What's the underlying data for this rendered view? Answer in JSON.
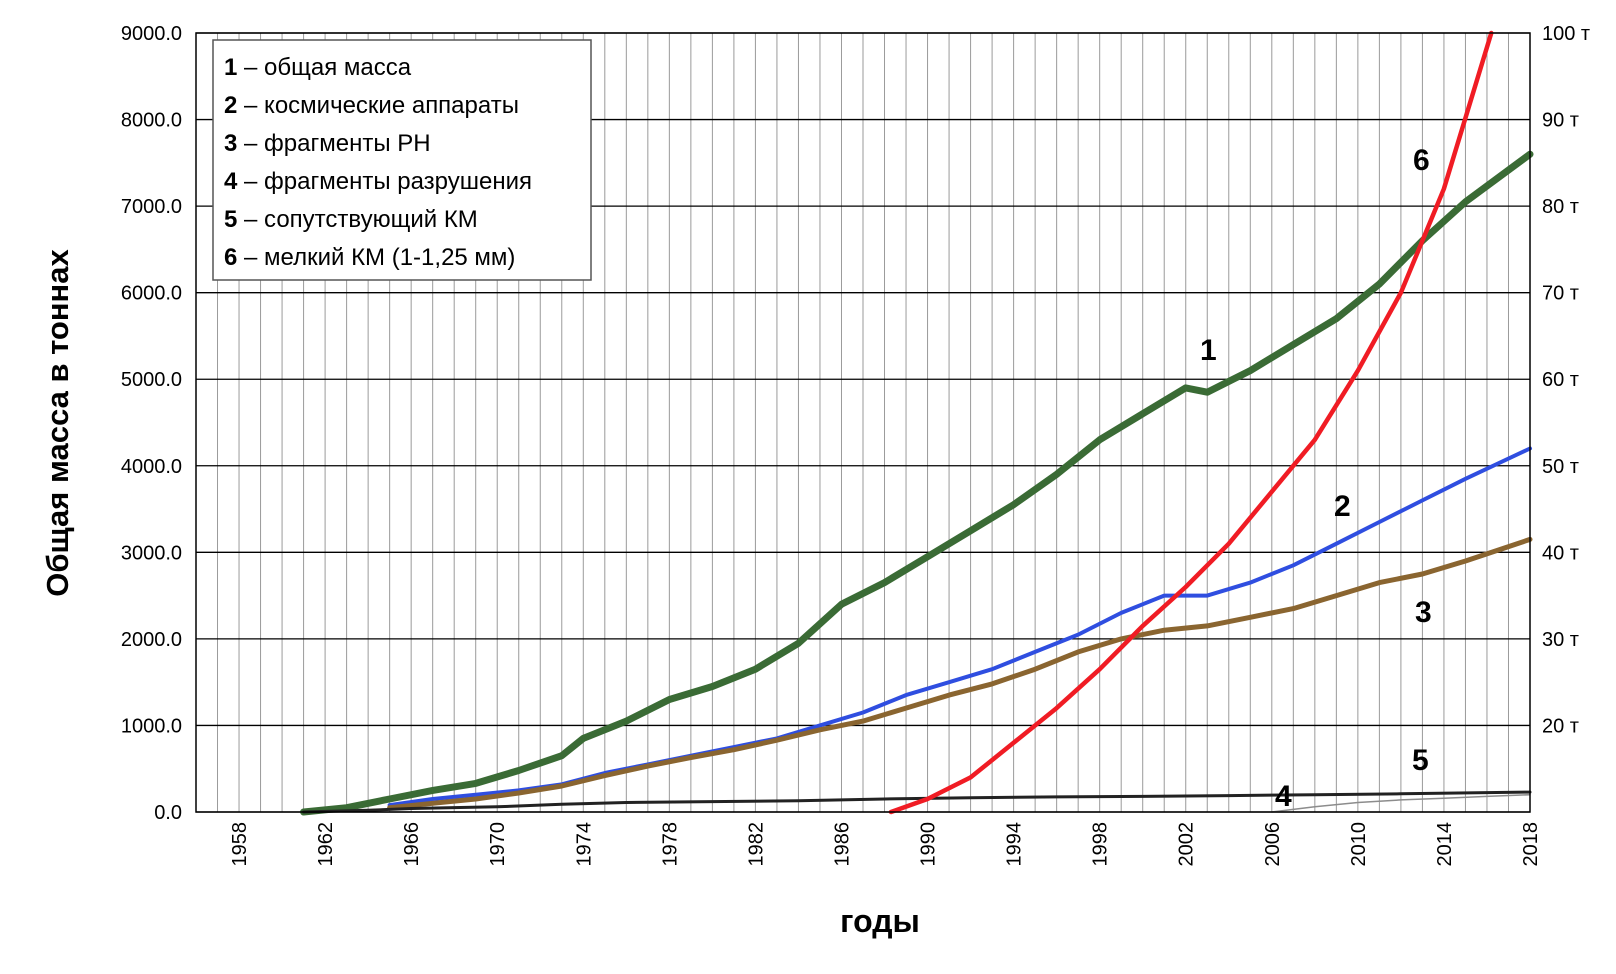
{
  "chart_data": {
    "type": "line",
    "xlabel": "годы",
    "ylabel": "Общая масса в тоннах",
    "x_ticks": [
      "1958",
      "1962",
      "1966",
      "1970",
      "1974",
      "1978",
      "1982",
      "1986",
      "1990",
      "1994",
      "1998",
      "2002",
      "2006",
      "2010",
      "2014",
      "2018"
    ],
    "xlim": [
      1956,
      2018
    ],
    "ylim": [
      0,
      9000
    ],
    "y_ticks": [
      "0.0",
      "1000.0",
      "2000.0",
      "3000.0",
      "4000.0",
      "5000.0",
      "6000.0",
      "7000.0",
      "8000.0",
      "9000.0"
    ],
    "y2_ticks": [
      "20 т",
      "30 т",
      "40 т",
      "50 т",
      "60 т",
      "70 т",
      "80 т",
      "90 т",
      "100 т"
    ],
    "y2_values": [
      20,
      30,
      40,
      50,
      60,
      70,
      80,
      90,
      100
    ],
    "y2lim": [
      10,
      100
    ],
    "grid": true,
    "legend_position": "top-left",
    "legend": [
      {
        "num": "1",
        "text": " – общая масса"
      },
      {
        "num": "2",
        "text": " – космические аппараты"
      },
      {
        "num": "3",
        "text": " – фрагменты РН"
      },
      {
        "num": "4",
        "text": " – фрагменты разрушения"
      },
      {
        "num": "5",
        "text": " – сопутствующий КМ"
      },
      {
        "num": "6",
        "text": " – мелкий КМ (1-1,25 мм)"
      }
    ],
    "series": [
      {
        "name": "1",
        "color": "#3a6b35",
        "axis": "left",
        "x": [
          1961,
          1963,
          1965,
          1967,
          1969,
          1971,
          1973,
          1974,
          1976,
          1978,
          1980,
          1982,
          1984,
          1986,
          1988,
          1990,
          1992,
          1994,
          1996,
          1998,
          2000,
          2002,
          2003,
          2005,
          2007,
          2009,
          2011,
          2013,
          2015,
          2018
        ],
        "values": [
          0,
          50,
          150,
          250,
          330,
          480,
          650,
          850,
          1050,
          1300,
          1450,
          1650,
          1950,
          2400,
          2650,
          2950,
          3250,
          3550,
          3900,
          4300,
          4600,
          4900,
          4850,
          5100,
          5400,
          5700,
          6100,
          6600,
          7050,
          7600
        ]
      },
      {
        "name": "2",
        "color": "#2f4ee0",
        "axis": "left",
        "x": [
          1965,
          1967,
          1969,
          1971,
          1973,
          1975,
          1977,
          1979,
          1981,
          1983,
          1985,
          1987,
          1989,
          1991,
          1993,
          1995,
          1997,
          1999,
          2001,
          2003,
          2005,
          2007,
          2009,
          2011,
          2013,
          2015,
          2018
        ],
        "values": [
          80,
          150,
          200,
          250,
          320,
          450,
          550,
          650,
          750,
          850,
          1000,
          1150,
          1350,
          1500,
          1650,
          1850,
          2050,
          2300,
          2500,
          2500,
          2650,
          2850,
          3100,
          3350,
          3600,
          3850,
          4200
        ]
      },
      {
        "name": "3",
        "color": "#8a6530",
        "axis": "left",
        "x": [
          1965,
          1967,
          1969,
          1971,
          1973,
          1975,
          1977,
          1979,
          1981,
          1983,
          1985,
          1987,
          1989,
          1991,
          1993,
          1995,
          1997,
          1999,
          2001,
          2003,
          2005,
          2007,
          2009,
          2011,
          2013,
          2015,
          2018
        ],
        "values": [
          50,
          100,
          150,
          220,
          300,
          420,
          530,
          630,
          720,
          830,
          950,
          1050,
          1200,
          1350,
          1480,
          1650,
          1850,
          2000,
          2100,
          2150,
          2250,
          2350,
          2500,
          2650,
          2750,
          2900,
          3150
        ]
      },
      {
        "name": "4",
        "color": "#222222",
        "axis": "left",
        "x": [
          1961,
          1964,
          1966,
          1970,
          1973,
          1976,
          1980,
          1984,
          1988,
          1992,
          1996,
          2000,
          2004,
          2008,
          2012,
          2018
        ],
        "values": [
          0,
          20,
          40,
          60,
          90,
          110,
          120,
          130,
          150,
          165,
          175,
          180,
          190,
          200,
          210,
          230
        ]
      },
      {
        "name": "5",
        "color": "#8c8c8c",
        "axis": "left",
        "x": [
          2006,
          2008,
          2010,
          2012,
          2014,
          2016,
          2018
        ],
        "values": [
          0,
          60,
          110,
          140,
          160,
          180,
          200
        ]
      },
      {
        "name": "6",
        "color": "#f01c24",
        "axis": "right",
        "x": [
          1988.3,
          1990,
          1992,
          1994,
          1996,
          1998,
          2000,
          2002,
          2004,
          2006,
          2008,
          2010,
          2012,
          2014,
          2016.2
        ],
        "values": [
          10,
          11.5,
          14,
          18,
          22,
          26.5,
          31.5,
          36,
          41,
          47,
          53,
          61,
          70,
          82,
          100
        ]
      }
    ]
  }
}
